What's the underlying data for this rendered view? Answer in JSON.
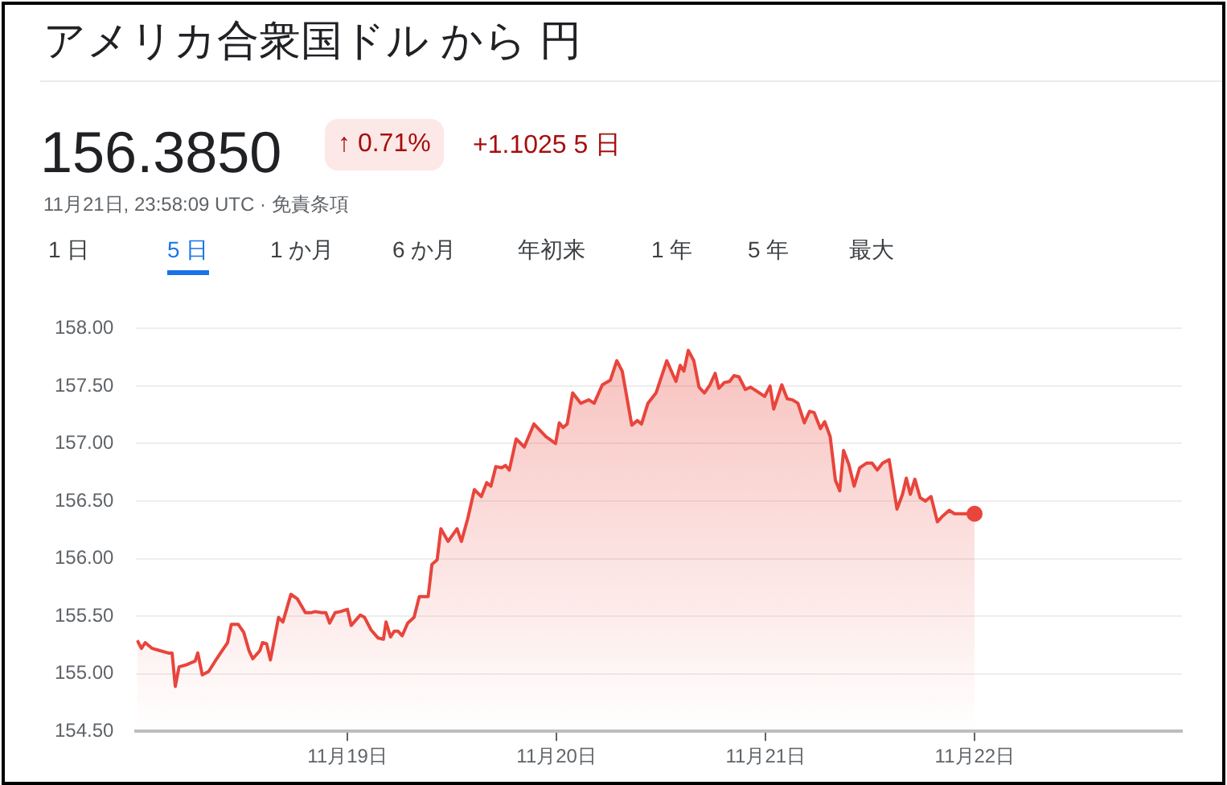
{
  "chart_data": {
    "type": "area",
    "title": "アメリカ合衆国ドル から 円",
    "subtitle": "156.3850",
    "annotations": [
      "↑ 0.71%",
      "+1.1025 5 日",
      "11月21日, 23:58:09 UTC · 免責条項",
      "1 日",
      "5 日",
      "1 か月",
      "6 か月",
      "年初来",
      "1 年",
      "5 年",
      "最大"
    ],
    "xlim": [
      "--11-17T23:46",
      "--11-22T23:46"
    ],
    "xticks": [
      {
        "value": "--11-19",
        "label": "11月19日"
      },
      {
        "value": "--11-20",
        "label": "11月20日"
      },
      {
        "value": "--11-21",
        "label": "11月21日"
      },
      {
        "value": "--11-22",
        "label": "11月22日"
      }
    ],
    "ylim": [
      154.5,
      158
    ],
    "yticks": [
      {
        "value": 154.5,
        "label": "154.50"
      },
      {
        "value": 155,
        "label": "155.00"
      },
      {
        "value": 155.5,
        "label": "155.50"
      },
      {
        "value": 156,
        "label": "156.00"
      },
      {
        "value": 156.5,
        "label": "156.50"
      },
      {
        "value": 157,
        "label": "157.00"
      },
      {
        "value": 157.5,
        "label": "157.50"
      },
      {
        "value": 158,
        "label": "158.00"
      }
    ],
    "grid": "y",
    "legend": false,
    "marker": "none",
    "line_style": "solid",
    "series": [
      {
        "color": "#e8453c",
        "x": [
          "--11-17T23:53",
          "--11-18T00:22",
          "--11-18T00:48",
          "--11-18T01:36",
          "--11-18T02:31",
          "--11-18T03:27",
          "--11-18T03:53",
          "--11-18T04:15",
          "--11-18T04:41",
          "--11-18T05:37",
          "--11-18T06:32",
          "--11-18T06:50",
          "--11-18T07:21",
          "--11-18T08:05",
          "--11-18T09:00",
          "--11-18T09:37",
          "--11-18T10:15",
          "--11-18T10:41",
          "--11-18T11:28",
          "--11-18T12:06",
          "--11-18T12:43",
          "--11-18T13:09",
          "--11-18T13:57",
          "--11-18T14:15",
          "--11-18T14:44",
          "--11-18T15:10",
          "--11-18T16:06",
          "--11-18T16:36",
          "--11-18T17:31",
          "--11-18T18:16",
          "--11-18T19:11",
          "--11-18T19:48",
          "--11-18T20:18",
          "--11-18T21:03",
          "--11-18T21:32",
          "--11-18T21:58",
          "--11-18T22:35",
          "--11-18T23:12",
          "--11-19T00:00",
          "--11-19T00:26",
          "--11-19T01:29",
          "--11-19T01:58",
          "--11-19T02:43",
          "--11-19T03:32",
          "--11-19T04:08",
          "--11-19T04:26",
          "--11-19T04:57",
          "--11-19T05:23",
          "--11-19T05:48",
          "--11-19T06:17",
          "--11-19T06:55",
          "--11-19T07:39",
          "--11-19T08:15",
          "--11-19T09:16",
          "--11-19T09:42",
          "--11-19T10:18",
          "--11-19T10:44",
          "--11-19T11:33",
          "--11-19T12:35",
          "--11-19T13:05",
          "--11-19T13:49",
          "--11-19T14:34",
          "--11-19T15:22",
          "--11-19T15:59",
          "--11-19T16:28",
          "--11-19T17:02",
          "--11-19T17:43",
          "--11-19T18:09",
          "--11-19T18:35",
          "--11-19T19:22",
          "--11-19T20:18",
          "--11-19T21:24",
          "--11-19T22:47",
          "--11-19T23:53",
          "--11-20T00:19",
          "--11-20T00:45",
          "--11-20T01:13",
          "--11-20T01:51",
          "--11-20T02:47",
          "--11-20T03:42",
          "--11-20T04:19",
          "--11-20T05:15",
          "--11-20T06:10",
          "--11-20T06:55",
          "--11-20T07:32",
          "--11-20T08:38",
          "--11-20T09:16",
          "--11-20T09:45",
          "--11-20T10:29",
          "--11-20T11:25",
          "--11-20T12:39",
          "--11-20T13:42",
          "--11-20T14:11",
          "--11-20T14:37",
          "--11-20T15:07",
          "--11-20T15:45",
          "--11-20T16:21",
          "--11-20T16:58",
          "--11-20T17:36",
          "--11-20T18:12",
          "--11-20T18:37",
          "--11-20T19:15",
          "--11-20T19:52",
          "--11-20T20:21",
          "--11-20T20:56",
          "--11-20T21:40",
          "--11-20T22:16",
          "--11-20T23:05",
          "--11-20T23:53",
          "--11-21T00:30",
          "--11-21T00:55",
          "--11-21T01:51",
          "--11-21T02:28",
          "--11-21T03:04",
          "--11-21T03:42",
          "--11-21T04:26",
          "--11-21T05:02",
          "--11-21T05:33",
          "--11-21T06:17",
          "--11-21T06:46",
          "--11-21T07:24",
          "--11-21T08:00",
          "--11-21T08:30",
          "--11-21T08:56",
          "--11-21T09:32",
          "--11-21T10:09",
          "--11-21T10:47",
          "--11-21T11:34",
          "--11-21T12:12",
          "--11-21T12:48",
          "--11-21T13:25",
          "--11-21T14:10",
          "--11-21T15:04",
          "--11-21T15:42",
          "--11-21T16:08",
          "--11-21T16:36",
          "--11-21T17:07",
          "--11-21T17:43",
          "--11-21T18:20",
          "--11-21T18:58",
          "--11-21T19:42",
          "--11-21T20:18",
          "--11-21T21:03",
          "--11-21T21:40",
          "--11-21T22:47",
          "--11-21T23:58"
        ],
        "values": [
          155.29,
          155.22,
          155.27,
          155.22,
          155.2,
          155.18,
          155.18,
          154.89,
          155.06,
          155.08,
          155.11,
          155.18,
          154.99,
          155.02,
          155.13,
          155.2,
          155.27,
          155.43,
          155.43,
          155.36,
          155.2,
          155.13,
          155.2,
          155.27,
          155.26,
          155.12,
          155.49,
          155.45,
          155.69,
          155.65,
          155.53,
          155.53,
          155.54,
          155.53,
          155.53,
          155.44,
          155.53,
          155.54,
          155.56,
          155.42,
          155.51,
          155.49,
          155.38,
          155.31,
          155.3,
          155.45,
          155.32,
          155.37,
          155.37,
          155.33,
          155.44,
          155.49,
          155.67,
          155.67,
          155.95,
          155.99,
          156.26,
          156.15,
          156.26,
          156.15,
          156.35,
          156.6,
          156.54,
          156.66,
          156.63,
          156.8,
          156.79,
          156.81,
          156.77,
          157.04,
          156.97,
          157.17,
          157.06,
          157.0,
          157.18,
          157.14,
          157.17,
          157.44,
          157.35,
          157.38,
          157.35,
          157.51,
          157.55,
          157.72,
          157.63,
          157.16,
          157.2,
          157.17,
          157.35,
          157.44,
          157.72,
          157.54,
          157.68,
          157.63,
          157.81,
          157.72,
          157.49,
          157.44,
          157.51,
          157.61,
          157.48,
          157.53,
          157.54,
          157.59,
          157.58,
          157.47,
          157.49,
          157.45,
          157.41,
          157.5,
          157.3,
          157.51,
          157.39,
          157.38,
          157.35,
          157.18,
          157.28,
          157.27,
          157.13,
          157.19,
          157.06,
          156.68,
          156.59,
          156.94,
          156.82,
          156.63,
          156.79,
          156.83,
          156.83,
          156.77,
          156.83,
          156.86,
          156.43,
          156.56,
          156.7,
          156.56,
          156.69,
          156.53,
          156.5,
          156.54,
          156.32,
          156.37,
          156.42,
          156.39,
          156.39,
          156.39
        ]
      },
      {
        "type": "scatter",
        "color": "#e8453c",
        "marker": "circle",
        "x": [
          "--11-21T23:58"
        ],
        "values": [
          156.39
        ]
      }
    ]
  }
}
